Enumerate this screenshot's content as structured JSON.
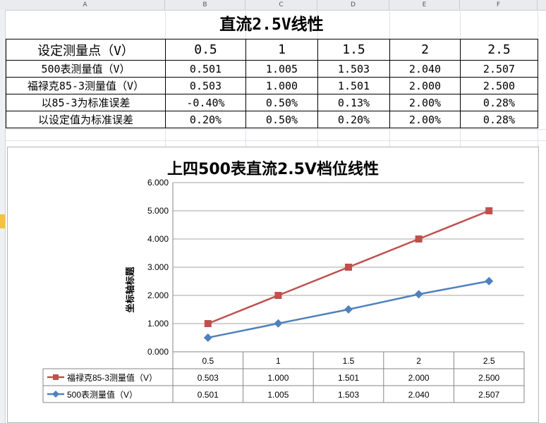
{
  "sheet": {
    "columns": [
      "A",
      "B",
      "C",
      "D",
      "E",
      "F"
    ]
  },
  "table": {
    "title": "直流2.5V线性",
    "header_label": "设定测量点（V）",
    "set_points": [
      "0.5",
      "1",
      "1.5",
      "2",
      "2.5"
    ],
    "rows": [
      {
        "label": "500表测量值（V）",
        "values": [
          "0.501",
          "1.005",
          "1.503",
          "2.040",
          "2.507"
        ]
      },
      {
        "label": "福禄克85-3测量值（V）",
        "values": [
          "0.503",
          "1.000",
          "1.501",
          "2.000",
          "2.500"
        ]
      },
      {
        "label": "以85-3为标准误差",
        "values": [
          "-0.40%",
          "0.50%",
          "0.13%",
          "2.00%",
          "0.28%"
        ]
      },
      {
        "label": "以设定值为标准误差",
        "values": [
          "0.20%",
          "0.50%",
          "0.20%",
          "2.00%",
          "0.28%"
        ]
      }
    ]
  },
  "chart_data": {
    "type": "line",
    "title": "上四500表直流2.5V档位线性",
    "ylabel": "坐标轴标题",
    "xlabel": "",
    "categories": [
      "0.5",
      "1",
      "1.5",
      "2",
      "2.5"
    ],
    "ylim": [
      0,
      6
    ],
    "yticks": [
      "0.000",
      "1.000",
      "2.000",
      "3.000",
      "4.000",
      "5.000",
      "6.000"
    ],
    "grid": true,
    "legend": "data-table",
    "series": [
      {
        "name": "福禄克85-3测量值（V）",
        "plotted_values": [
          1.0,
          2.0,
          3.0,
          4.0,
          5.0
        ],
        "table_values": [
          "0.503",
          "1.000",
          "1.501",
          "2.000",
          "2.500"
        ],
        "color": "#c0504d",
        "marker": "square"
      },
      {
        "name": "500表测量值（V）",
        "plotted_values": [
          0.501,
          1.005,
          1.503,
          2.04,
          2.507
        ],
        "table_values": [
          "0.501",
          "1.005",
          "1.503",
          "2.040",
          "2.507"
        ],
        "color": "#4f81bd",
        "marker": "diamond"
      }
    ]
  }
}
